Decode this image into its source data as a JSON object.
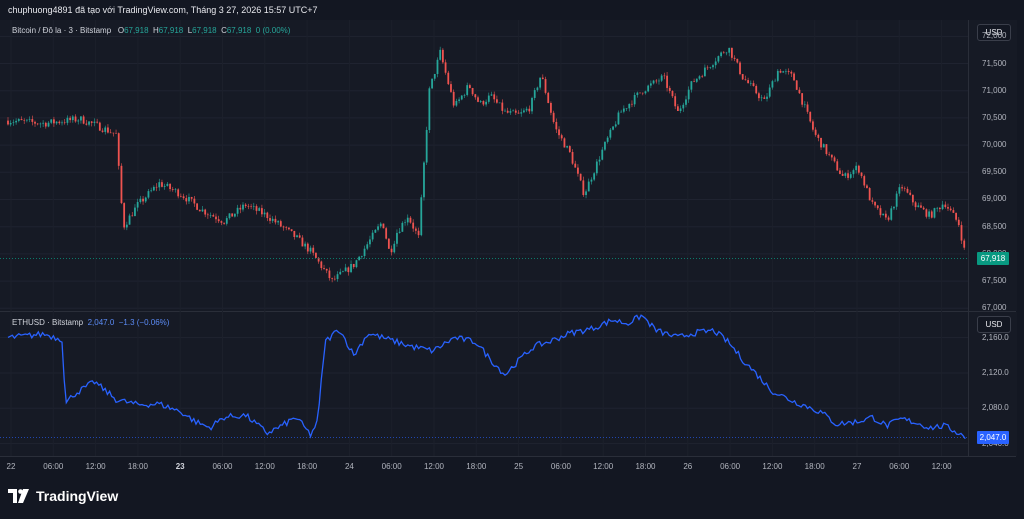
{
  "header": {
    "text": "chuphuong4891 đã tạo với TradingView.com, Tháng 3 27, 2026 15:57 UTC+7"
  },
  "brand": {
    "name": "TradingView"
  },
  "colors": {
    "background": "#131722",
    "up": "#26a69a",
    "down": "#ef5350",
    "eth_line": "#2962ff"
  },
  "chart_data": [
    {
      "type": "candlestick",
      "legend": {
        "symbol": "Bitcoin / Đô la · 3 · Bitstamp",
        "o_label": "O",
        "o": "67,918",
        "h_label": "H",
        "h": "67,918",
        "l_label": "L",
        "l": "67,918",
        "c_label": "C",
        "c": "67,918",
        "change": "0 (0.00%)"
      },
      "currency": "USD",
      "y_ticks": [
        "72,000",
        "71,500",
        "71,000",
        "70,500",
        "70,000",
        "69,500",
        "69,000",
        "68,500",
        "68,000",
        "67,500",
        "67,000"
      ],
      "ylim": [
        66950,
        72300
      ],
      "last_price_label": "67,918",
      "last_price": 67918,
      "series": [
        {
          "name": "Bitcoin / Đô la",
          "x": [
            0,
            10,
            20,
            25,
            30,
            32,
            36,
            42,
            48,
            54,
            60,
            66,
            72,
            76,
            80,
            84,
            90,
            96,
            100,
            104,
            106,
            108,
            111,
            114,
            117,
            120,
            124,
            128,
            131,
            134,
            138,
            142,
            145,
            148,
            152,
            156,
            160,
            165
          ],
          "y": [
            70450,
            70400,
            70480,
            70350,
            70200,
            68500,
            68900,
            69300,
            69100,
            68800,
            68600,
            68900,
            68700,
            68500,
            68300,
            68050,
            67500,
            67800,
            68200,
            68600,
            68000,
            68400,
            68700,
            68300,
            71000,
            71700,
            70700,
            71100,
            70750,
            70900,
            70600,
            70550,
            70700,
            71300,
            70300,
            69850,
            69100,
            69900
          ]
        },
        {
          "name": "Bitcoin / Đô la (cont.)",
          "x": [
            165,
            170,
            176,
            182,
            186,
            190,
            196,
            200,
            204,
            210,
            214,
            218,
            224,
            228,
            232,
            236,
            240,
            244,
            248,
            252,
            256,
            260,
            264,
            266
          ],
          "y": [
            69900,
            70600,
            71000,
            71250,
            70600,
            71150,
            71550,
            71800,
            71250,
            70800,
            71400,
            71250,
            70200,
            69800,
            69400,
            69600,
            68900,
            68600,
            69250,
            68900,
            68700,
            68950,
            68550,
            67918
          ]
        }
      ]
    },
    {
      "type": "line",
      "legend": {
        "symbol": "ETHUSD · Bitstamp",
        "value": "2,047.0",
        "change": "−1.3 (−0.06%)"
      },
      "currency": "USD",
      "y_ticks": [
        "2,160.0",
        "2,120.0",
        "2,080.0",
        "2,040.0"
      ],
      "ylim": [
        2026,
        2189
      ],
      "last_price_label": "2,047.0",
      "last_price": 2047,
      "series": [
        {
          "name": "ETHUSD · Bitstamp",
          "x": [
            0,
            10,
            15,
            16,
            18,
            24,
            30,
            36,
            42,
            48,
            52,
            56,
            60,
            66,
            72,
            76,
            80,
            84,
            86,
            88,
            92,
            96,
            100,
            104,
            108,
            112,
            118,
            124,
            130,
            134,
            138,
            142,
            146,
            150,
            156,
            162,
            168,
            172,
            176,
            180,
            186,
            190,
            196,
            200,
            204,
            208,
            212,
            218,
            222,
            226,
            230,
            236,
            240,
            244,
            248,
            252,
            256,
            260,
            264,
            266
          ],
          "y": [
            2160,
            2164,
            2158,
            2085,
            2095,
            2110,
            2090,
            2084,
            2085,
            2076,
            2065,
            2058,
            2070,
            2072,
            2052,
            2060,
            2070,
            2050,
            2065,
            2155,
            2170,
            2140,
            2165,
            2160,
            2155,
            2150,
            2145,
            2160,
            2155,
            2135,
            2118,
            2135,
            2150,
            2155,
            2165,
            2170,
            2180,
            2176,
            2185,
            2168,
            2160,
            2165,
            2168,
            2155,
            2135,
            2118,
            2100,
            2088,
            2082,
            2075,
            2062,
            2065,
            2070,
            2060,
            2068,
            2064,
            2058,
            2060,
            2052,
            2047
          ]
        }
      ]
    }
  ],
  "x_axis": {
    "ticks": [
      {
        "label": "22",
        "bold": false
      },
      {
        "label": "06:00",
        "bold": false
      },
      {
        "label": "12:00",
        "bold": false
      },
      {
        "label": "18:00",
        "bold": false
      },
      {
        "label": "23",
        "bold": true
      },
      {
        "label": "06:00",
        "bold": false
      },
      {
        "label": "12:00",
        "bold": false
      },
      {
        "label": "18:00",
        "bold": false
      },
      {
        "label": "24",
        "bold": false
      },
      {
        "label": "06:00",
        "bold": false
      },
      {
        "label": "12:00",
        "bold": false
      },
      {
        "label": "18:00",
        "bold": false
      },
      {
        "label": "25",
        "bold": false
      },
      {
        "label": "06:00",
        "bold": false
      },
      {
        "label": "12:00",
        "bold": false
      },
      {
        "label": "18:00",
        "bold": false
      },
      {
        "label": "26",
        "bold": false
      },
      {
        "label": "06:00",
        "bold": false
      },
      {
        "label": "12:00",
        "bold": false
      },
      {
        "label": "18:00",
        "bold": false
      },
      {
        "label": "27",
        "bold": false
      },
      {
        "label": "06:00",
        "bold": false
      },
      {
        "label": "12:00",
        "bold": false
      }
    ]
  }
}
